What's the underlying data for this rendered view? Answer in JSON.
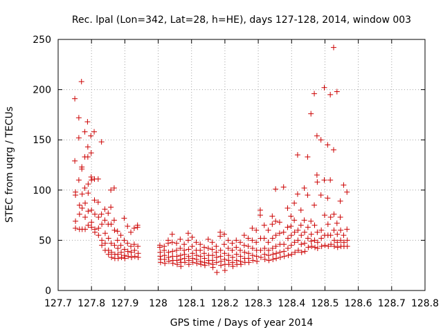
{
  "chart_data": {
    "type": "scatter",
    "title": "Rec. lpal (Lon=342, Lat=28, h=HE), days 127-128, 2014, window 003",
    "xlabel": "GPS time / Days of year 2014",
    "ylabel": "STEC from uqrg / TECUs",
    "xlim": [
      127.7,
      128.8
    ],
    "ylim": [
      0,
      250
    ],
    "xticks": [
      "127.7",
      "127.8",
      "127.9",
      "128",
      "128.1",
      "128.2",
      "128.3",
      "128.4",
      "128.5",
      "128.6",
      "128.7",
      "128.8"
    ],
    "yticks": [
      "0",
      "50",
      "100",
      "150",
      "200",
      "250"
    ],
    "grid": true,
    "marker": "plus",
    "color": "#cc0000",
    "points": [
      [
        127.75,
        191
      ],
      [
        127.75,
        129
      ],
      [
        127.752,
        98
      ],
      [
        127.752,
        95
      ],
      [
        127.752,
        69
      ],
      [
        127.752,
        62
      ],
      [
        127.762,
        172
      ],
      [
        127.762,
        152
      ],
      [
        127.762,
        110
      ],
      [
        127.764,
        85
      ],
      [
        127.764,
        76
      ],
      [
        127.764,
        61
      ],
      [
        127.77,
        208
      ],
      [
        127.771,
        123
      ],
      [
        127.771,
        121
      ],
      [
        127.772,
        96
      ],
      [
        127.772,
        82
      ],
      [
        127.772,
        61
      ],
      [
        127.78,
        158
      ],
      [
        127.78,
        133
      ],
      [
        127.78,
        102
      ],
      [
        127.781,
        87
      ],
      [
        127.781,
        73
      ],
      [
        127.781,
        61
      ],
      [
        127.788,
        168
      ],
      [
        127.789,
        143
      ],
      [
        127.789,
        133
      ],
      [
        127.79,
        106
      ],
      [
        127.79,
        97
      ],
      [
        127.79,
        79
      ],
      [
        127.79,
        65
      ],
      [
        127.798,
        154
      ],
      [
        127.799,
        137
      ],
      [
        127.799,
        113
      ],
      [
        127.8,
        110
      ],
      [
        127.8,
        80
      ],
      [
        127.8,
        68
      ],
      [
        127.8,
        63
      ],
      [
        127.808,
        158
      ],
      [
        127.809,
        111
      ],
      [
        127.809,
        90
      ],
      [
        127.81,
        76
      ],
      [
        127.81,
        61
      ],
      [
        127.81,
        58
      ],
      [
        127.82,
        111
      ],
      [
        127.82,
        88
      ],
      [
        127.821,
        73
      ],
      [
        127.821,
        62
      ],
      [
        127.821,
        55
      ],
      [
        127.83,
        148
      ],
      [
        127.83,
        76
      ],
      [
        127.831,
        66
      ],
      [
        127.831,
        50
      ],
      [
        127.831,
        45
      ],
      [
        127.84,
        81
      ],
      [
        127.84,
        70
      ],
      [
        127.841,
        57
      ],
      [
        127.841,
        47
      ],
      [
        127.841,
        40
      ],
      [
        127.85,
        77
      ],
      [
        127.85,
        66
      ],
      [
        127.851,
        52
      ],
      [
        127.851,
        40
      ],
      [
        127.851,
        36
      ],
      [
        127.858,
        100
      ],
      [
        127.858,
        83
      ],
      [
        127.859,
        66
      ],
      [
        127.859,
        47
      ],
      [
        127.86,
        38
      ],
      [
        127.86,
        33
      ],
      [
        127.868,
        102
      ],
      [
        127.868,
        70
      ],
      [
        127.869,
        60
      ],
      [
        127.869,
        45
      ],
      [
        127.87,
        36
      ],
      [
        127.87,
        32
      ],
      [
        127.878,
        59
      ],
      [
        127.878,
        50
      ],
      [
        127.879,
        42
      ],
      [
        127.879,
        36
      ],
      [
        127.88,
        32
      ],
      [
        127.888,
        55
      ],
      [
        127.888,
        45
      ],
      [
        127.889,
        38
      ],
      [
        127.89,
        33
      ],
      [
        127.898,
        72
      ],
      [
        127.898,
        50
      ],
      [
        127.899,
        41
      ],
      [
        127.899,
        35
      ],
      [
        127.9,
        32
      ],
      [
        127.908,
        64
      ],
      [
        127.908,
        47
      ],
      [
        127.909,
        39
      ],
      [
        127.91,
        34
      ],
      [
        127.918,
        58
      ],
      [
        127.918,
        44
      ],
      [
        127.919,
        38
      ],
      [
        127.92,
        33
      ],
      [
        127.928,
        62
      ],
      [
        127.928,
        46
      ],
      [
        127.929,
        40
      ],
      [
        127.93,
        34
      ],
      [
        127.938,
        65
      ],
      [
        127.938,
        63
      ],
      [
        127.939,
        44
      ],
      [
        127.94,
        37
      ],
      [
        127.94,
        33
      ],
      [
        128.005,
        45
      ],
      [
        128.005,
        43
      ],
      [
        128.006,
        38
      ],
      [
        128.006,
        34
      ],
      [
        128.007,
        31
      ],
      [
        128.007,
        28
      ],
      [
        128.018,
        44
      ],
      [
        128.018,
        40
      ],
      [
        128.019,
        35
      ],
      [
        128.019,
        31
      ],
      [
        128.02,
        27
      ],
      [
        128.03,
        50
      ],
      [
        128.03,
        47
      ],
      [
        128.031,
        38
      ],
      [
        128.031,
        33
      ],
      [
        128.032,
        29
      ],
      [
        128.042,
        56
      ],
      [
        128.042,
        48
      ],
      [
        128.043,
        39
      ],
      [
        128.043,
        34
      ],
      [
        128.044,
        30
      ],
      [
        128.044,
        27
      ],
      [
        128.055,
        47
      ],
      [
        128.055,
        40
      ],
      [
        128.056,
        34
      ],
      [
        128.056,
        30
      ],
      [
        128.057,
        26
      ],
      [
        128.066,
        51
      ],
      [
        128.066,
        42
      ],
      [
        128.067,
        35
      ],
      [
        128.067,
        31
      ],
      [
        128.068,
        28
      ],
      [
        128.068,
        24
      ],
      [
        128.078,
        46
      ],
      [
        128.078,
        40
      ],
      [
        128.079,
        36
      ],
      [
        128.079,
        32
      ],
      [
        128.08,
        28
      ],
      [
        128.09,
        57
      ],
      [
        128.09,
        50
      ],
      [
        128.091,
        41
      ],
      [
        128.091,
        34
      ],
      [
        128.092,
        30
      ],
      [
        128.092,
        26
      ],
      [
        128.102,
        53
      ],
      [
        128.102,
        44
      ],
      [
        128.103,
        37
      ],
      [
        128.103,
        32
      ],
      [
        128.104,
        28
      ],
      [
        128.114,
        48
      ],
      [
        128.114,
        40
      ],
      [
        128.115,
        35
      ],
      [
        128.115,
        31
      ],
      [
        128.116,
        27
      ],
      [
        128.126,
        46
      ],
      [
        128.126,
        40
      ],
      [
        128.127,
        34
      ],
      [
        128.127,
        29
      ],
      [
        128.128,
        26
      ],
      [
        128.138,
        43
      ],
      [
        128.138,
        37
      ],
      [
        128.139,
        32
      ],
      [
        128.139,
        28
      ],
      [
        128.14,
        25
      ],
      [
        128.15,
        51
      ],
      [
        128.15,
        42
      ],
      [
        128.151,
        35
      ],
      [
        128.151,
        30
      ],
      [
        128.152,
        27
      ],
      [
        128.162,
        48
      ],
      [
        128.162,
        41
      ],
      [
        128.163,
        35
      ],
      [
        128.163,
        30
      ],
      [
        128.164,
        26
      ],
      [
        128.164,
        23
      ],
      [
        128.174,
        44
      ],
      [
        128.174,
        38
      ],
      [
        128.175,
        33
      ],
      [
        128.175,
        28
      ],
      [
        128.176,
        18
      ],
      [
        128.186,
        58
      ],
      [
        128.186,
        54
      ],
      [
        128.187,
        40
      ],
      [
        128.187,
        34
      ],
      [
        128.188,
        29
      ],
      [
        128.188,
        25
      ],
      [
        128.198,
        56
      ],
      [
        128.198,
        46
      ],
      [
        128.199,
        37
      ],
      [
        128.199,
        31
      ],
      [
        128.2,
        26
      ],
      [
        128.2,
        20
      ],
      [
        128.21,
        50
      ],
      [
        128.21,
        42
      ],
      [
        128.211,
        35
      ],
      [
        128.211,
        30
      ],
      [
        128.212,
        26
      ],
      [
        128.222,
        47
      ],
      [
        128.222,
        40
      ],
      [
        128.223,
        33
      ],
      [
        128.223,
        28
      ],
      [
        128.224,
        24
      ],
      [
        128.234,
        50
      ],
      [
        128.234,
        43
      ],
      [
        128.235,
        36
      ],
      [
        128.235,
        30
      ],
      [
        128.236,
        26
      ],
      [
        128.246,
        48
      ],
      [
        128.246,
        40
      ],
      [
        128.247,
        34
      ],
      [
        128.247,
        29
      ],
      [
        128.248,
        26
      ],
      [
        128.258,
        55
      ],
      [
        128.258,
        45
      ],
      [
        128.259,
        38
      ],
      [
        128.259,
        32
      ],
      [
        128.26,
        28
      ],
      [
        128.27,
        52
      ],
      [
        128.27,
        44
      ],
      [
        128.271,
        37
      ],
      [
        128.271,
        32
      ],
      [
        128.272,
        28
      ],
      [
        128.282,
        62
      ],
      [
        128.282,
        50
      ],
      [
        128.283,
        42
      ],
      [
        128.283,
        35
      ],
      [
        128.284,
        30
      ],
      [
        128.294,
        60
      ],
      [
        128.294,
        48
      ],
      [
        128.295,
        40
      ],
      [
        128.295,
        34
      ],
      [
        128.296,
        29
      ],
      [
        128.306,
        80
      ],
      [
        128.306,
        75
      ],
      [
        128.307,
        52
      ],
      [
        128.307,
        40
      ],
      [
        128.308,
        33
      ],
      [
        128.318,
        65
      ],
      [
        128.318,
        52
      ],
      [
        128.319,
        42
      ],
      [
        128.319,
        36
      ],
      [
        128.32,
        31
      ],
      [
        128.33,
        60
      ],
      [
        128.33,
        48
      ],
      [
        128.331,
        40
      ],
      [
        128.331,
        35
      ],
      [
        128.332,
        30
      ],
      [
        128.342,
        74
      ],
      [
        128.342,
        66
      ],
      [
        128.343,
        52
      ],
      [
        128.343,
        42
      ],
      [
        128.344,
        36
      ],
      [
        128.344,
        31
      ],
      [
        128.352,
        101
      ],
      [
        128.352,
        69
      ],
      [
        128.353,
        55
      ],
      [
        128.353,
        44
      ],
      [
        128.354,
        37
      ],
      [
        128.354,
        32
      ],
      [
        128.364,
        68
      ],
      [
        128.364,
        57
      ],
      [
        128.365,
        46
      ],
      [
        128.365,
        38
      ],
      [
        128.366,
        33
      ],
      [
        128.376,
        103
      ],
      [
        128.376,
        58
      ],
      [
        128.377,
        46
      ],
      [
        128.377,
        39
      ],
      [
        128.378,
        34
      ],
      [
        128.388,
        82
      ],
      [
        128.388,
        63
      ],
      [
        128.389,
        52
      ],
      [
        128.389,
        42
      ],
      [
        128.39,
        35
      ],
      [
        128.398,
        74
      ],
      [
        128.398,
        64
      ],
      [
        128.399,
        55
      ],
      [
        128.399,
        45
      ],
      [
        128.4,
        36
      ],
      [
        128.408,
        87
      ],
      [
        128.408,
        70
      ],
      [
        128.409,
        58
      ],
      [
        128.409,
        48
      ],
      [
        128.41,
        38
      ],
      [
        128.418,
        135
      ],
      [
        128.418,
        96
      ],
      [
        128.419,
        60
      ],
      [
        128.419,
        50
      ],
      [
        128.42,
        40
      ],
      [
        128.428,
        80
      ],
      [
        128.428,
        65
      ],
      [
        128.429,
        55
      ],
      [
        128.429,
        46
      ],
      [
        128.43,
        38
      ],
      [
        128.438,
        102
      ],
      [
        128.438,
        70
      ],
      [
        128.439,
        58
      ],
      [
        128.439,
        47
      ],
      [
        128.44,
        39
      ],
      [
        128.448,
        133
      ],
      [
        128.448,
        95
      ],
      [
        128.449,
        63
      ],
      [
        128.449,
        52
      ],
      [
        128.45,
        43
      ],
      [
        128.458,
        176
      ],
      [
        128.458,
        69
      ],
      [
        128.459,
        56
      ],
      [
        128.459,
        49
      ],
      [
        128.46,
        44
      ],
      [
        128.468,
        196
      ],
      [
        128.468,
        85
      ],
      [
        128.469,
        65
      ],
      [
        128.469,
        50
      ],
      [
        128.47,
        43
      ],
      [
        128.476,
        154
      ],
      [
        128.476,
        115
      ],
      [
        128.477,
        108
      ],
      [
        128.477,
        58
      ],
      [
        128.478,
        48
      ],
      [
        128.478,
        42
      ],
      [
        128.488,
        150
      ],
      [
        128.488,
        95
      ],
      [
        128.489,
        60
      ],
      [
        128.489,
        52
      ],
      [
        128.49,
        44
      ],
      [
        128.498,
        202
      ],
      [
        128.498,
        110
      ],
      [
        128.499,
        75
      ],
      [
        128.499,
        55
      ],
      [
        128.5,
        45
      ],
      [
        128.508,
        145
      ],
      [
        128.508,
        92
      ],
      [
        128.509,
        66
      ],
      [
        128.509,
        55
      ],
      [
        128.51,
        44
      ],
      [
        128.516,
        195
      ],
      [
        128.516,
        110
      ],
      [
        128.517,
        73
      ],
      [
        128.517,
        55
      ],
      [
        128.518,
        46
      ],
      [
        128.526,
        242
      ],
      [
        128.526,
        140
      ],
      [
        128.527,
        76
      ],
      [
        128.527,
        60
      ],
      [
        128.528,
        50
      ],
      [
        128.528,
        44
      ],
      [
        128.536,
        198
      ],
      [
        128.536,
        67
      ],
      [
        128.537,
        56
      ],
      [
        128.537,
        48
      ],
      [
        128.538,
        43
      ],
      [
        128.546,
        89
      ],
      [
        128.546,
        73
      ],
      [
        128.547,
        60
      ],
      [
        128.547,
        50
      ],
      [
        128.548,
        44
      ],
      [
        128.556,
        105
      ],
      [
        128.556,
        55
      ],
      [
        128.557,
        48
      ],
      [
        128.557,
        44
      ],
      [
        128.566,
        98
      ],
      [
        128.566,
        61
      ],
      [
        128.567,
        50
      ],
      [
        128.567,
        44
      ]
    ]
  }
}
